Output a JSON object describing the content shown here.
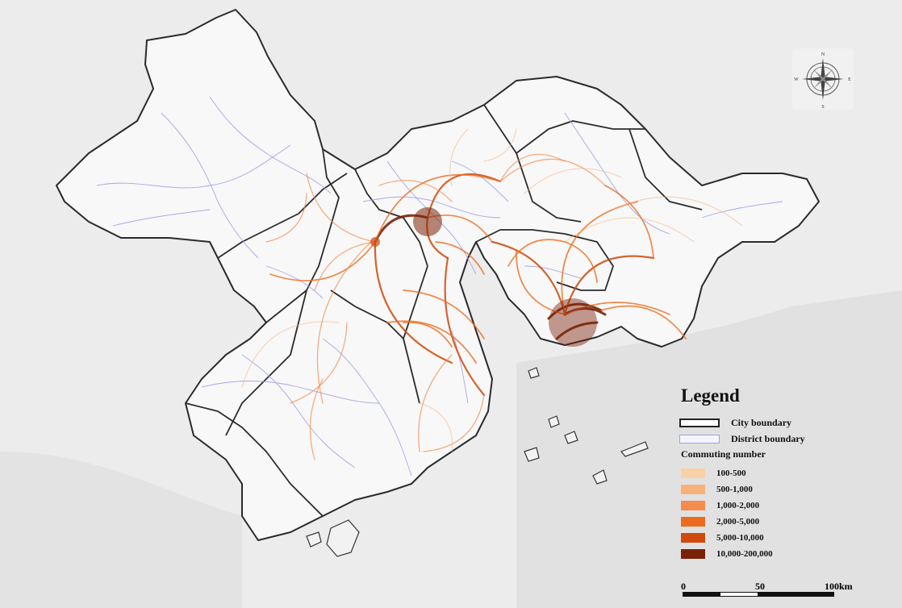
{
  "legend": {
    "title": "Legend",
    "city_boundary_label": "City boundary",
    "district_boundary_label": "District boundary",
    "commuting_title": "Commuting number",
    "classes": [
      {
        "label": "100-500",
        "color": "#f9d1a6"
      },
      {
        "label": "500-1,000",
        "color": "#f7b27c"
      },
      {
        "label": "1,000-2,000",
        "color": "#f48c4e"
      },
      {
        "label": "2,000-5,000",
        "color": "#ec6b1e"
      },
      {
        "label": "5,000-10,000",
        "color": "#cf4a0c"
      },
      {
        "label": "10,000-200,000",
        "color": "#7a2208"
      }
    ]
  },
  "scale": {
    "labels": [
      "0",
      "50",
      "100km"
    ]
  },
  "compass": {
    "n": "N",
    "s": "S",
    "e": "E",
    "w": "W"
  },
  "colors": {
    "city_boundary": "#2b2b2b",
    "district_boundary": "#a6a6ee",
    "land": "#f7f7f7",
    "background": "#e8e8e8"
  }
}
